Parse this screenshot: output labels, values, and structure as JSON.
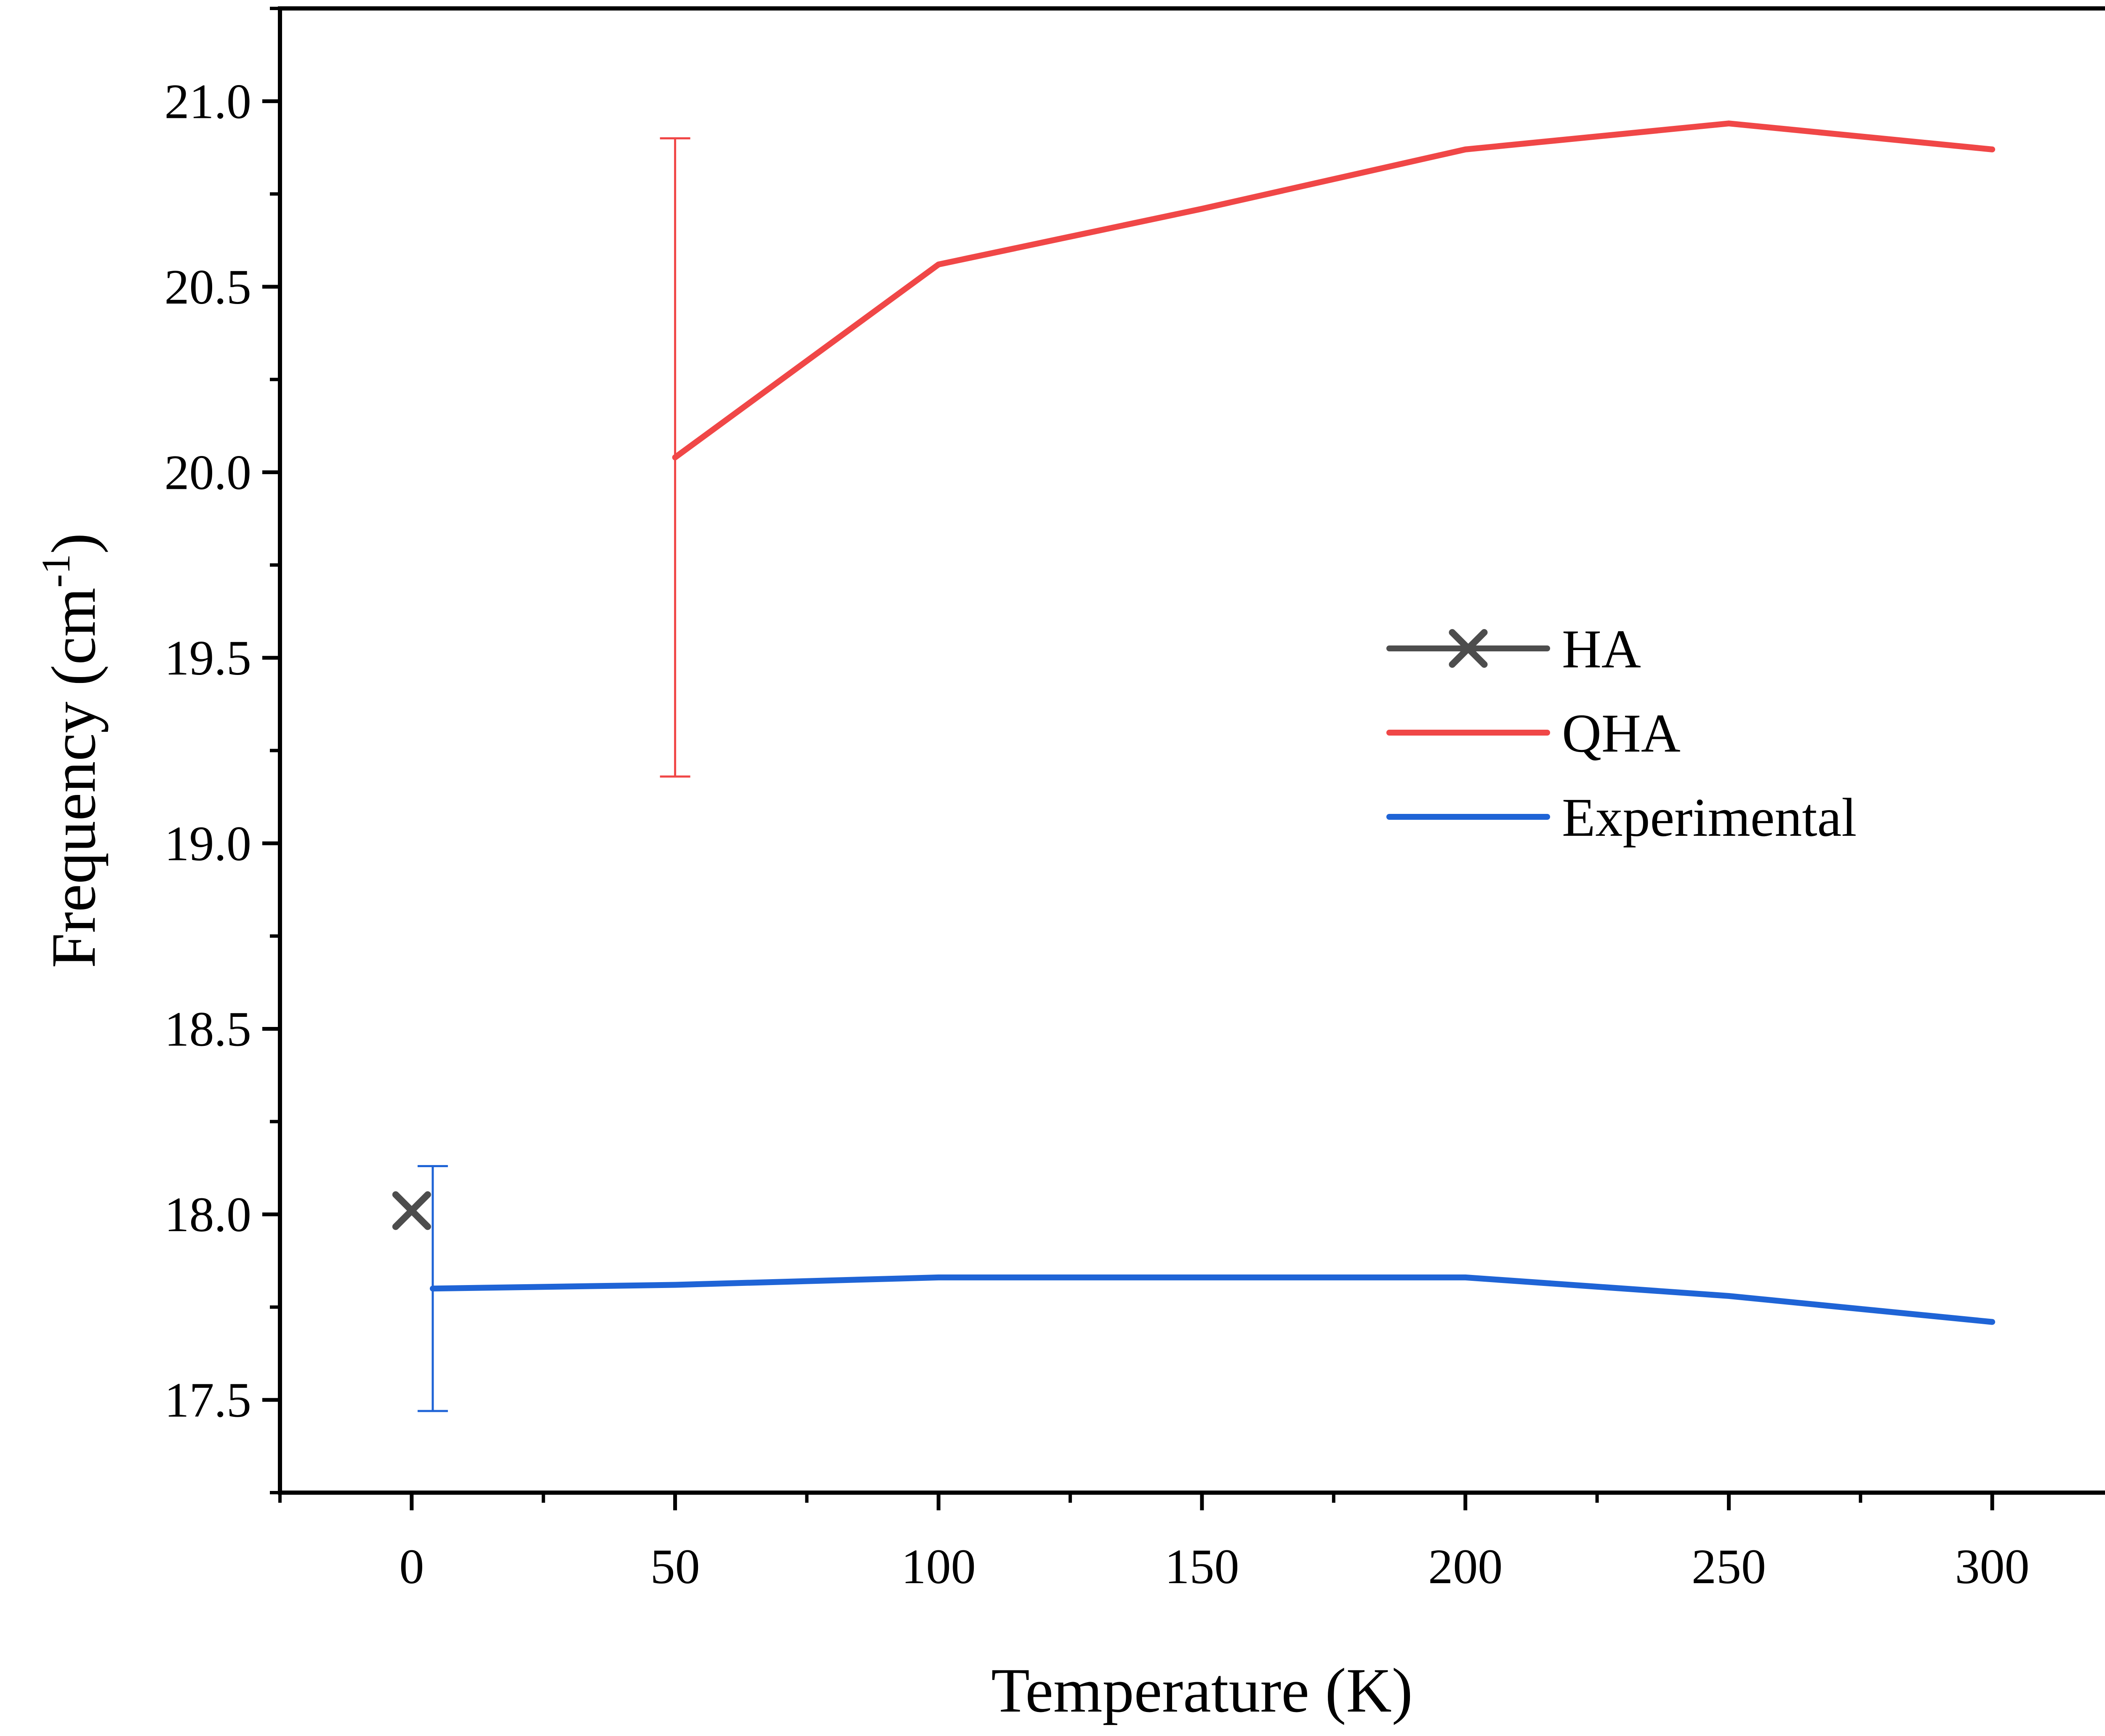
{
  "chart_data": {
    "type": "line",
    "xlabel": "Temperature (K)",
    "ylabel": {
      "text": "Frequency (cm",
      "sup": "-1",
      "end": ")"
    },
    "xlim": [
      -25,
      325
    ],
    "ylim": [
      17.25,
      21.25
    ],
    "x_ticks": [
      0,
      50,
      100,
      150,
      200,
      250,
      300
    ],
    "x_tick_labels": [
      "0",
      "50",
      "100",
      "150",
      "200",
      "250",
      "300"
    ],
    "y_ticks": [
      17.5,
      18.0,
      18.5,
      19.0,
      19.5,
      20.0,
      20.5,
      21.0
    ],
    "y_tick_labels": [
      "17.5",
      "18.0",
      "18.5",
      "19.0",
      "19.5",
      "20.0",
      "20.5",
      "21.0"
    ],
    "grid": false,
    "legend_position": "center-right",
    "series": [
      {
        "name": "HA",
        "color": "#4d4d4d",
        "marker": "x",
        "x": [
          0
        ],
        "y": [
          18.01
        ]
      },
      {
        "name": "QHA",
        "color": "#f04747",
        "marker": "none",
        "x": [
          50,
          100,
          150,
          200,
          250,
          300
        ],
        "y": [
          20.04,
          20.56,
          20.71,
          20.87,
          20.94,
          20.87
        ],
        "error_bars": [
          {
            "x": 50,
            "low": 19.18,
            "high": 20.9
          }
        ]
      },
      {
        "name": "Experimental",
        "color": "#1f64d6",
        "marker": "none",
        "x": [
          4,
          50,
          100,
          150,
          200,
          250,
          300
        ],
        "y": [
          17.8,
          17.81,
          17.83,
          17.83,
          17.83,
          17.78,
          17.71
        ],
        "error_bars": [
          {
            "x": 4,
            "low": 17.47,
            "high": 18.13
          }
        ]
      }
    ]
  }
}
